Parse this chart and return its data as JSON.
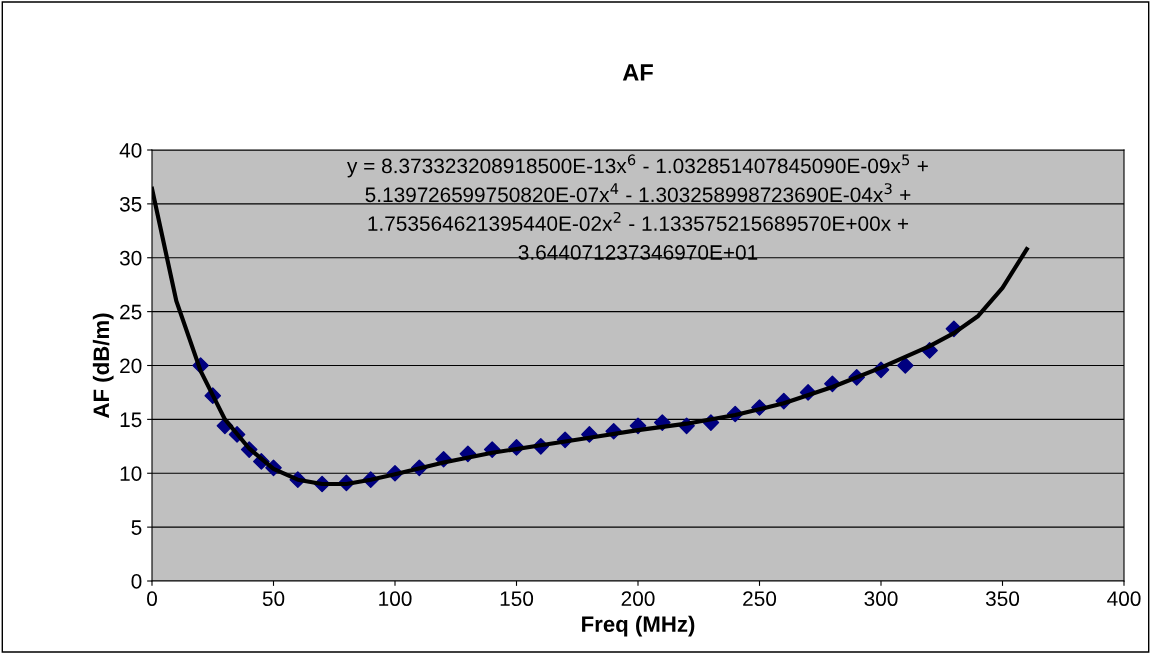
{
  "chart_data": {
    "type": "scatter",
    "title": "AF",
    "xlabel": "Freq (MHz)",
    "ylabel": "AF (dB/m)",
    "annotations": [
      "y = 8.373323208918500E-13x$^{6}$ - 1.032851407845090E-09x$^{5}$ +\n5.139726599750820E-07x$^{4}$ - 1.303258998723690E-04x$^{3}$ +\n1.753564621395440E-02x$^{2}$ - 1.133575215689570E+00x +\n3.644071237346970E+01"
    ],
    "xlim": [
      0,
      400
    ],
    "xticks": [
      0,
      50,
      100,
      150,
      200,
      250,
      300,
      350,
      400
    ],
    "ylim": [
      0,
      40
    ],
    "yticks": [
      0,
      5,
      10,
      15,
      20,
      25,
      30,
      35,
      40
    ],
    "grid": "y",
    "legend": false,
    "series": [
      {
        "color": "#000080",
        "marker": "diamond",
        "x": [
          20,
          25,
          30,
          35,
          40,
          45,
          50,
          60,
          70,
          80,
          90,
          100,
          110,
          120,
          130,
          140,
          150,
          160,
          170,
          180,
          190,
          200,
          210,
          220,
          230,
          240,
          250,
          260,
          270,
          280,
          290,
          300,
          310,
          320,
          330
        ],
        "values": [
          20,
          17.2,
          14.4,
          13.6,
          12.2,
          11.1,
          10.5,
          9.4,
          9.0,
          9.1,
          9.4,
          10.0,
          10.5,
          11.3,
          11.8,
          12.2,
          12.4,
          12.5,
          13.1,
          13.6,
          13.9,
          14.4,
          14.7,
          14.4,
          14.7,
          15.5,
          16.1,
          16.7,
          17.5,
          18.3,
          18.9,
          19.6,
          20.0,
          21.4,
          23.4
        ]
      },
      {
        "type": "line",
        "color": "#000000",
        "marker": "none",
        "line_style": "solid",
        "x": [
          0,
          10,
          20,
          30,
          40,
          50,
          60,
          70,
          80,
          90,
          100,
          120,
          140,
          160,
          180,
          200,
          220,
          240,
          260,
          280,
          300,
          320,
          330,
          340,
          350,
          360
        ],
        "values": [
          36.4,
          26,
          19.5,
          15,
          12.3,
          10.4,
          9.4,
          9.0,
          9.0,
          9.4,
          9.9,
          11.0,
          11.9,
          12.6,
          13.3,
          14.0,
          14.6,
          15.4,
          16.5,
          18.0,
          19.8,
          21.8,
          23.0,
          24.6,
          27.2,
          30.8
        ]
      }
    ]
  }
}
